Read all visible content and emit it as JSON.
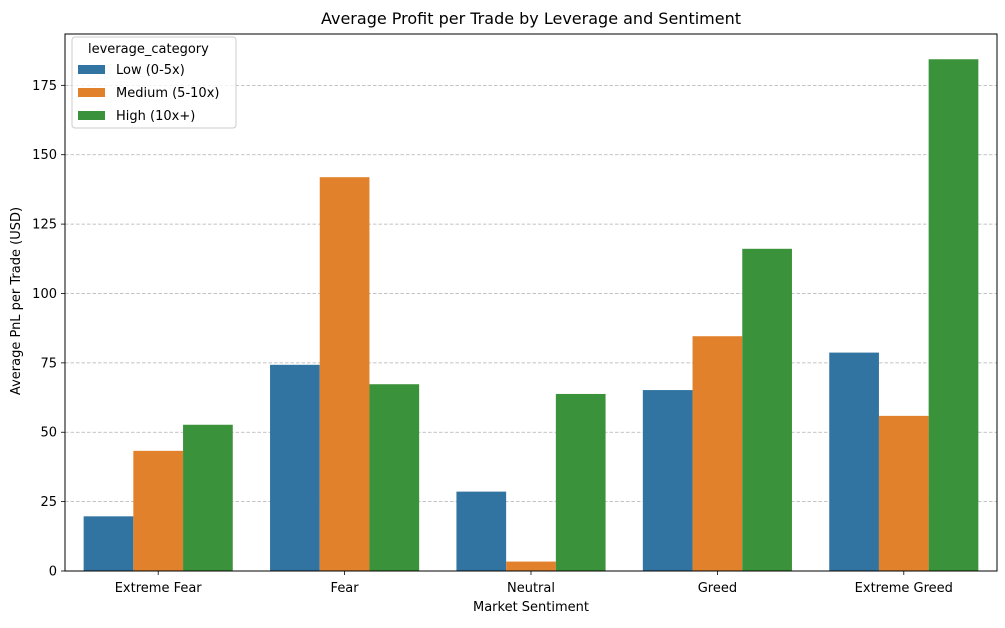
{
  "chart_data": {
    "type": "bar",
    "title": "Average Profit per Trade by Leverage and Sentiment",
    "xlabel": "Market Sentiment",
    "ylabel": "Average PnL per Trade (USD)",
    "categories": [
      "Extreme Fear",
      "Fear",
      "Neutral",
      "Greed",
      "Extreme Greed"
    ],
    "series": [
      {
        "name": "Low (0-5x)",
        "color": "#3274a1",
        "values": [
          19.7,
          74.3,
          28.6,
          65.2,
          78.7
        ]
      },
      {
        "name": "Medium (5-10x)",
        "color": "#e1812c",
        "values": [
          43.3,
          141.9,
          3.4,
          84.6,
          55.9
        ]
      },
      {
        "name": "High (10x+)",
        "color": "#3a923a",
        "values": [
          52.7,
          67.3,
          63.8,
          116.1,
          184.4
        ]
      }
    ],
    "ylim": [
      0,
      193.5
    ],
    "yticks": [
      0,
      25,
      50,
      75,
      100,
      125,
      150,
      175
    ],
    "grid": {
      "y": true,
      "x": false,
      "style": "dashed"
    },
    "legend": {
      "title": "leverage_category",
      "placement": "top-left"
    }
  }
}
